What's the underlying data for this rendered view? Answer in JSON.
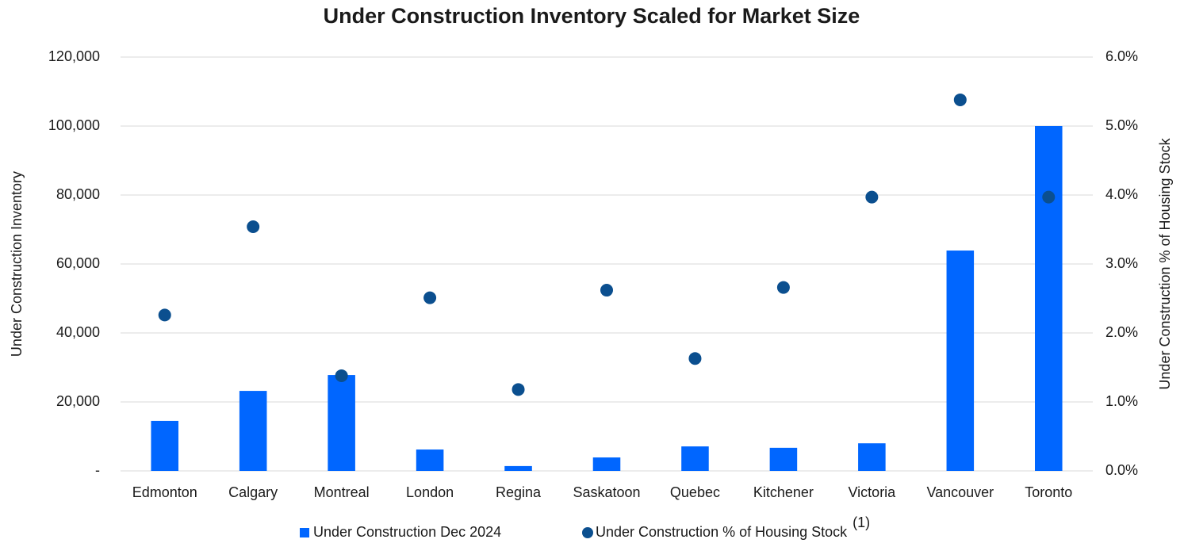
{
  "chart_data": {
    "type": "bar_scatter",
    "title": "Under Construction Inventory Scaled for Market Size",
    "y_label": "Under Construction Inventory",
    "y2_label": "Under Construction % of Housing Stock",
    "categories": [
      "Edmonton",
      "Calgary",
      "Montreal",
      "London",
      "Regina",
      "Saskatoon",
      "Quebec",
      "Kitchener",
      "Victoria",
      "Vancouver",
      "Toronto"
    ],
    "series": [
      {
        "name": "Under Construction Dec 2024",
        "type": "bar",
        "color": "#0066ff",
        "axis": "y",
        "values": [
          14500,
          23200,
          27800,
          6200,
          1400,
          3900,
          7100,
          6700,
          8000,
          63900,
          100000
        ]
      },
      {
        "name": "Under Construction % of Housing Stock",
        "name_superscript": "(1)",
        "type": "scatter",
        "color": "#0b4f8f",
        "axis": "y2",
        "values": [
          2.26,
          3.54,
          1.38,
          2.51,
          1.18,
          2.62,
          1.63,
          2.66,
          3.97,
          5.38,
          3.97
        ]
      }
    ],
    "ylim": [
      0,
      120000
    ],
    "yticks": [
      {
        "value": 0,
        "label": "-"
      },
      {
        "value": 20000,
        "label": "20,000"
      },
      {
        "value": 40000,
        "label": "40,000"
      },
      {
        "value": 60000,
        "label": "60,000"
      },
      {
        "value": 80000,
        "label": "80,000"
      },
      {
        "value": 100000,
        "label": "100,000"
      },
      {
        "value": 120000,
        "label": "120,000"
      }
    ],
    "y2lim": [
      0,
      6
    ],
    "y2ticks": [
      {
        "value": 0,
        "label": "0.0%"
      },
      {
        "value": 1,
        "label": "1.0%"
      },
      {
        "value": 2,
        "label": "2.0%"
      },
      {
        "value": 3,
        "label": "3.0%"
      },
      {
        "value": 4,
        "label": "4.0%"
      },
      {
        "value": 5,
        "label": "5.0%"
      },
      {
        "value": 6,
        "label": "6.0%"
      }
    ],
    "grid": true,
    "legend": "bottom"
  }
}
